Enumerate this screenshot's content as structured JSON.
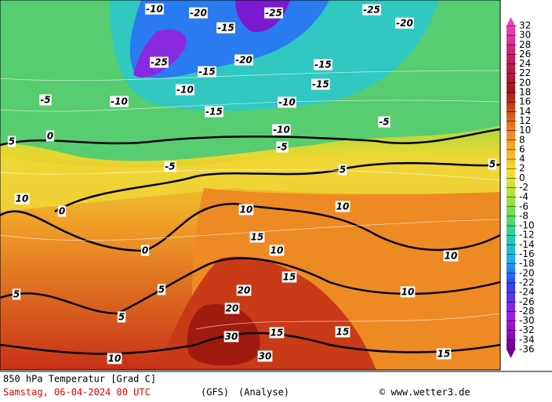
{
  "map": {
    "title": "850 hPa Temperatur [Grad C]",
    "date": "Samstag, 06-04-2024  00 UTC",
    "model": "(GFS)",
    "run": "(Analyse)",
    "credit": "© www.wetter3.de",
    "legend": [
      "32",
      "30",
      "28",
      "26",
      "24",
      "22",
      "20",
      "18",
      "16",
      "14",
      "12",
      "10",
      "8",
      "6",
      "4",
      "2",
      "0",
      "-2",
      "-4",
      "-6",
      "-8",
      "-10",
      "-12",
      "-14",
      "-16",
      "-18",
      "-20",
      "-22",
      "-24",
      "-26",
      "-28",
      "-30",
      "-32",
      "-34",
      "-36"
    ],
    "contour_labels": [
      "-10",
      "-20",
      "-25",
      "-25",
      "-20",
      "-15",
      "-20",
      "-25",
      "-15",
      "-10",
      "-15",
      "-15",
      "-10",
      "-10",
      "-15",
      "-10",
      "-5",
      "-5",
      "0",
      "5",
      "-5",
      "-5",
      "5",
      "5",
      "10",
      "0",
      "0",
      "10",
      "10",
      "15",
      "10",
      "15",
      "10",
      "10",
      "5",
      "5",
      "5",
      "20",
      "20",
      "30",
      "30",
      "15",
      "15",
      "10",
      "15"
    ]
  }
}
